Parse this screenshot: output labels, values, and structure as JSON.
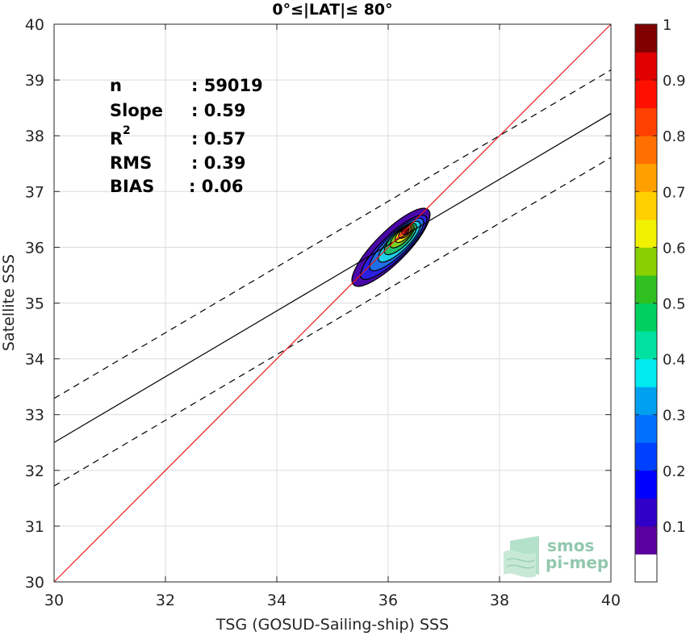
{
  "chart_data": {
    "type": "scatter",
    "title": "0°≤|LAT|≤ 80°",
    "xlabel": "TSG (GOSUD-Sailing-ship) SSS",
    "ylabel": "Satellite SSS",
    "xlim": [
      30,
      40
    ],
    "ylim": [
      30,
      40
    ],
    "xticks": [
      "30",
      "32",
      "34",
      "36",
      "38",
      "40"
    ],
    "yticks": [
      "30",
      "31",
      "32",
      "33",
      "34",
      "35",
      "36",
      "37",
      "38",
      "39",
      "40"
    ],
    "grid": true,
    "stats": {
      "n_label": "n",
      "n_value": ": 59019",
      "slope_label": "Slope",
      "slope_value": ": 0.59",
      "r2_label": "R",
      "r2_sup": "2",
      "r2_value": ": 0.57",
      "rms_label": "RMS",
      "rms_value": ": 0.39",
      "bias_label": "BIAS",
      "bias_value": ": 0.06"
    },
    "lines": {
      "identity": {
        "color": "#e41a1c",
        "x": [
          30,
          40
        ],
        "y": [
          30,
          40
        ]
      },
      "regression": {
        "color": "#000000",
        "x": [
          30,
          40
        ],
        "y": [
          32.5,
          38.4
        ]
      },
      "upper_bound": {
        "color": "#000000",
        "style": "dashed",
        "x": [
          30,
          40
        ],
        "y": [
          33.29,
          39.18
        ]
      },
      "lower_bound": {
        "color": "#000000",
        "style": "dashed",
        "x": [
          30,
          40
        ],
        "y": [
          31.72,
          37.61
        ]
      }
    },
    "density_peak": {
      "x": 36.3,
      "y": 36.3
    },
    "contour_levels": [
      {
        "level": 0.05,
        "color": "#4a08a8",
        "cx": 36.05,
        "cy": 36.0,
        "rx": 0.95,
        "ry": 0.28,
        "angle_deg": 45
      },
      {
        "level": 0.15,
        "color": "#2a20e0",
        "cx": 36.1,
        "cy": 36.0,
        "rx": 0.8,
        "ry": 0.22,
        "angle_deg": 44
      },
      {
        "level": 0.25,
        "color": "#1f6fe8",
        "cx": 36.15,
        "cy": 36.05,
        "rx": 0.65,
        "ry": 0.19,
        "angle_deg": 44
      },
      {
        "level": 0.35,
        "color": "#1fd1e8",
        "cx": 36.2,
        "cy": 36.1,
        "rx": 0.5,
        "ry": 0.16,
        "angle_deg": 44
      },
      {
        "level": 0.45,
        "color": "#20c070",
        "cx": 36.22,
        "cy": 36.15,
        "rx": 0.38,
        "ry": 0.14,
        "angle_deg": 44
      },
      {
        "level": 0.55,
        "color": "#7fd020",
        "cx": 36.25,
        "cy": 36.2,
        "rx": 0.28,
        "ry": 0.11,
        "angle_deg": 44
      },
      {
        "level": 0.65,
        "color": "#f6e020",
        "cx": 36.28,
        "cy": 36.24,
        "rx": 0.2,
        "ry": 0.09,
        "angle_deg": 44
      },
      {
        "level": 0.75,
        "color": "#f08018",
        "cx": 36.3,
        "cy": 36.27,
        "rx": 0.14,
        "ry": 0.07,
        "angle_deg": 44
      },
      {
        "level": 0.85,
        "color": "#e8301a",
        "cx": 36.31,
        "cy": 36.3,
        "rx": 0.08,
        "ry": 0.05,
        "angle_deg": 44
      },
      {
        "level": 0.95,
        "color": "#900000",
        "cx": 36.32,
        "cy": 36.32,
        "rx": 0.035,
        "ry": 0.03,
        "angle_deg": 44
      }
    ],
    "colorbar": {
      "colors": [
        "#ffffff",
        "#5a009e",
        "#3000c8",
        "#0000ff",
        "#0040ff",
        "#0070ff",
        "#00a0f0",
        "#00eaf0",
        "#00e0a0",
        "#00d060",
        "#30c020",
        "#8ad000",
        "#f0f000",
        "#ffd000",
        "#ffa000",
        "#ff7000",
        "#ff4000",
        "#ff1000",
        "#e00000",
        "#800000"
      ],
      "ticks": [
        "0.1",
        "0.2",
        "0.3",
        "0.4",
        "0.5",
        "0.6",
        "0.7",
        "0.8",
        "0.9",
        "1"
      ],
      "tick_values": [
        0.1,
        0.2,
        0.3,
        0.4,
        0.5,
        0.6,
        0.7,
        0.8,
        0.9,
        1.0
      ]
    },
    "watermark": {
      "line1": "smos",
      "line2": "pi-mep"
    }
  }
}
